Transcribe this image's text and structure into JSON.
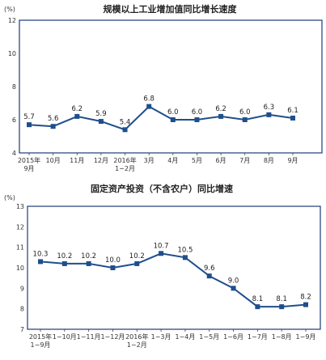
{
  "chart_data": [
    {
      "type": "line",
      "title": "规模以上工业增加值同比增长速度",
      "unit_label": "(%)",
      "ylim": [
        4,
        12
      ],
      "yticks": [
        "4",
        "6",
        "8",
        "10",
        "12"
      ],
      "categories": [
        [
          "2015年",
          "9月"
        ],
        [
          "10月"
        ],
        [
          "11月"
        ],
        [
          "12月"
        ],
        [
          "2016年",
          "1−2月"
        ],
        [
          "3月"
        ],
        [
          "4月"
        ],
        [
          "5月"
        ],
        [
          "6月"
        ],
        [
          "7月"
        ],
        [
          "8月"
        ],
        [
          "9月"
        ]
      ],
      "values": [
        5.7,
        5.6,
        6.2,
        5.9,
        5.4,
        6.8,
        6.0,
        6.0,
        6.2,
        6.0,
        6.3,
        6.1
      ],
      "value_labels": [
        "5.7",
        "5.6",
        "6.2",
        "5.9",
        "5.4",
        "6.8",
        "6.0",
        "6.0",
        "6.2",
        "6.0",
        "6.3",
        "6.1"
      ],
      "color": "#1f4e8c"
    },
    {
      "type": "line",
      "title": "固定资产投资（不含农户）同比增速",
      "unit_label": "(%)",
      "ylim": [
        7,
        13
      ],
      "yticks": [
        "7",
        "8",
        "9",
        "10",
        "11",
        "12",
        "13"
      ],
      "categories": [
        [
          "2015年",
          "1−9月"
        ],
        [
          "1−10月"
        ],
        [
          "1−11月"
        ],
        [
          "1−12月"
        ],
        [
          "2016年",
          "1−2月"
        ],
        [
          "1−3月"
        ],
        [
          "1−4月"
        ],
        [
          "1−5月"
        ],
        [
          "1−6月"
        ],
        [
          "1−7月"
        ],
        [
          "1−8月"
        ],
        [
          "1−9月"
        ]
      ],
      "values": [
        10.3,
        10.2,
        10.2,
        10.0,
        10.2,
        10.7,
        10.5,
        9.6,
        9.0,
        8.1,
        8.1,
        8.2
      ],
      "value_labels": [
        "10.3",
        "10.2",
        "10.2",
        "10.0",
        "10.2",
        "10.7",
        "10.5",
        "9.6",
        "9.0",
        "8.1",
        "8.1",
        "8.2"
      ],
      "color": "#1f4e8c"
    }
  ]
}
